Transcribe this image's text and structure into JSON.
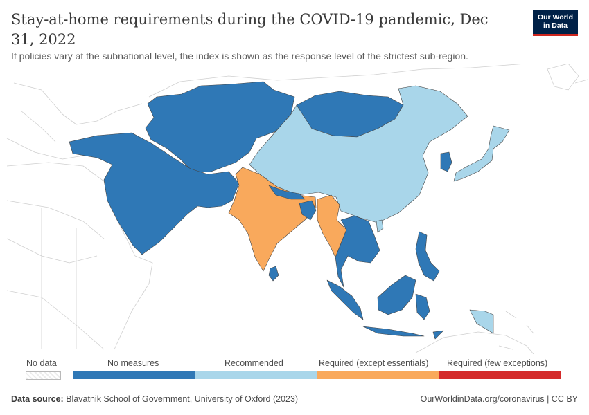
{
  "header": {
    "title": "Stay-at-home requirements during the COVID-19 pandemic, Dec 31, 2022",
    "subtitle": "If policies vary at the subnational level, the index is shown as the response level of the strictest sub-region."
  },
  "logo": {
    "line1": "Our World",
    "line2": "in Data"
  },
  "legend": {
    "no_data": "No data",
    "categories": [
      {
        "label": "No measures",
        "color": "#2f78b6"
      },
      {
        "label": "Recommended",
        "color": "#a9d6ea"
      },
      {
        "label": "Required (except essentials)",
        "color": "#f9a95c"
      },
      {
        "label": "Required (few exceptions)",
        "color": "#d42a2a"
      }
    ]
  },
  "footer": {
    "source_label": "Data source:",
    "source_text": "Blavatnik School of Government, University of Oxford (2023)",
    "credit": "OurWorldinData.org/coronavirus | CC BY"
  },
  "map_data": {
    "colors": {
      "no_data": "#ffffff",
      "no_measures": "#2f78b6",
      "recommended": "#a9d6ea",
      "required_except_essentials": "#f9a95c",
      "required_few_exceptions": "#d42a2a",
      "border": "#444444",
      "outside": "#cfcfcf"
    },
    "regions": [
      {
        "id": "central-asia",
        "category": "no_measures"
      },
      {
        "id": "mongolia",
        "category": "no_measures"
      },
      {
        "id": "middle-east",
        "category": "no_measures"
      },
      {
        "id": "china",
        "category": "recommended"
      },
      {
        "id": "india",
        "category": "required_except_essentials"
      },
      {
        "id": "nepal",
        "category": "no_measures"
      },
      {
        "id": "bangladesh",
        "category": "no_measures"
      },
      {
        "id": "myanmar",
        "category": "required_except_essentials"
      },
      {
        "id": "southeast-asia-mainland",
        "category": "no_measures"
      },
      {
        "id": "sri-lanka",
        "category": "no_measures"
      },
      {
        "id": "south-korea",
        "category": "no_measures"
      },
      {
        "id": "japan",
        "category": "recommended"
      },
      {
        "id": "taiwan",
        "category": "recommended"
      },
      {
        "id": "philippines",
        "category": "no_measures"
      },
      {
        "id": "indonesia-malaysia",
        "category": "no_measures"
      },
      {
        "id": "papua-new-guinea",
        "category": "recommended"
      }
    ]
  }
}
